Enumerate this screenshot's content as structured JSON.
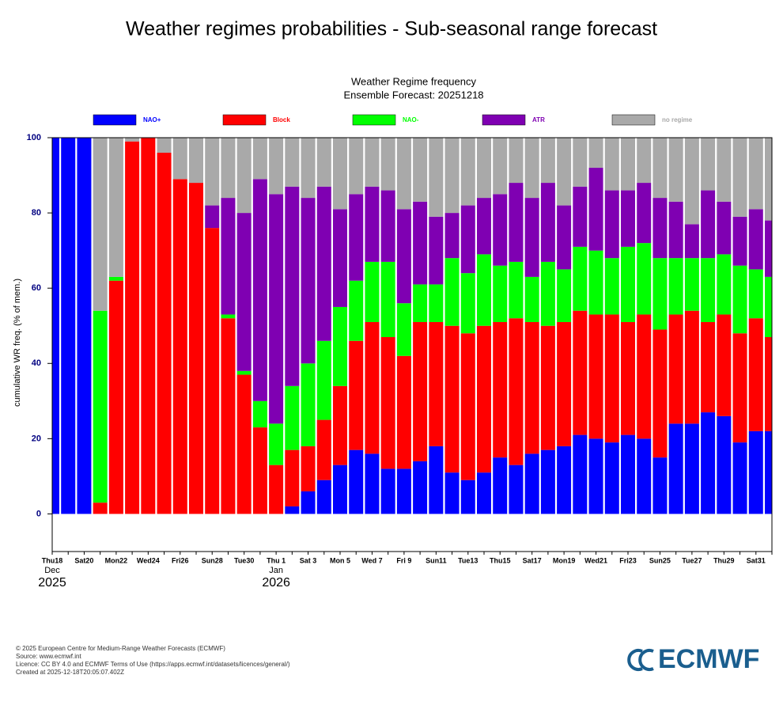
{
  "header": {
    "title": "Weather regimes probabilities - Sub-seasonal range forecast"
  },
  "chart_data": {
    "type": "stacked_bar",
    "title": "Weather Regime frequency",
    "subtitle": "Ensemble Forecast: 20251218",
    "y_label": "cumulative WR freq. (% of mem.)",
    "ylim": [
      -10,
      100
    ],
    "yticks": [
      0,
      20,
      40,
      60,
      80,
      100
    ],
    "categories": [
      "Thu18",
      null,
      "Sat20",
      null,
      "Mon22",
      null,
      "Wed24",
      null,
      "Fri26",
      null,
      "Sun28",
      null,
      "Tue30",
      null,
      "Thu 1",
      null,
      "Sat 3",
      null,
      "Mon 5",
      null,
      "Wed 7",
      null,
      "Fri 9",
      null,
      "Sun11",
      null,
      "Tue13",
      null,
      "Thu15",
      null,
      "Sat17",
      null,
      "Mon19",
      null,
      "Wed21",
      null,
      "Fri23",
      null,
      "Sun25",
      null,
      "Tue27",
      null,
      "Thu29",
      null,
      "Sat31",
      null
    ],
    "x_sublabels": [
      {
        "index": 0,
        "month": "Dec",
        "year": "2025"
      },
      {
        "index": 14,
        "month": "Jan",
        "year": "2026"
      }
    ],
    "series": [
      {
        "name": "NAO+",
        "color": "#0000ff",
        "values": [
          100,
          100,
          100,
          0,
          0,
          0,
          0,
          0,
          0,
          0,
          0,
          0,
          0,
          0,
          0,
          2,
          6,
          9,
          13,
          17,
          16,
          12,
          12,
          14,
          18,
          11,
          9,
          11,
          15,
          13,
          16,
          17,
          18,
          21,
          20,
          19,
          21,
          20,
          15,
          24,
          24,
          27,
          26,
          19,
          22,
          22
        ]
      },
      {
        "name": "Block",
        "color": "#ff0000",
        "values": [
          0,
          0,
          0,
          3,
          62,
          99,
          100,
          96,
          89,
          88,
          76,
          52,
          37,
          23,
          13,
          15,
          12,
          16,
          21,
          29,
          35,
          35,
          30,
          37,
          33,
          39,
          39,
          39,
          36,
          39,
          35,
          33,
          33,
          33,
          33,
          34,
          30,
          33,
          34,
          29,
          30,
          24,
          27,
          29,
          30,
          25
        ]
      },
      {
        "name": "NAO-",
        "color": "#00ff00",
        "values": [
          0,
          0,
          0,
          51,
          1,
          0,
          0,
          0,
          0,
          0,
          0,
          1,
          1,
          7,
          11,
          17,
          22,
          21,
          21,
          16,
          16,
          20,
          14,
          10,
          10,
          18,
          16,
          19,
          15,
          15,
          12,
          17,
          14,
          17,
          17,
          15,
          20,
          19,
          19,
          15,
          14,
          17,
          16,
          18,
          13,
          16
        ]
      },
      {
        "name": "ATR",
        "color": "#7f00b2",
        "values": [
          0,
          0,
          0,
          0,
          0,
          0,
          0,
          0,
          0,
          0,
          6,
          31,
          42,
          59,
          61,
          53,
          44,
          41,
          26,
          23,
          20,
          19,
          25,
          22,
          18,
          12,
          18,
          15,
          19,
          21,
          21,
          21,
          17,
          16,
          22,
          18,
          15,
          16,
          16,
          15,
          9,
          18,
          14,
          13,
          16,
          15
        ]
      },
      {
        "name": "no regime",
        "color": "#a9a9a9",
        "values": [
          0,
          0,
          0,
          46,
          37,
          1,
          0,
          4,
          11,
          12,
          18,
          16,
          20,
          11,
          15,
          13,
          16,
          13,
          19,
          15,
          13,
          14,
          19,
          17,
          21,
          20,
          18,
          16,
          15,
          12,
          16,
          12,
          18,
          13,
          8,
          14,
          14,
          12,
          16,
          17,
          23,
          14,
          17,
          21,
          19,
          22
        ]
      }
    ]
  },
  "footer": {
    "lines": [
      "© 2025 European Centre for Medium-Range Weather Forecasts (ECMWF)",
      "Source: www.ecmwf.int",
      "Licence: CC BY 4.0 and ECMWF Terms of Use (https://apps.ecmwf.int/datasets/licences/general/)",
      "Created at 2025-12-18T20:05:07.402Z"
    ]
  },
  "logo": {
    "text": "ECMWF"
  }
}
